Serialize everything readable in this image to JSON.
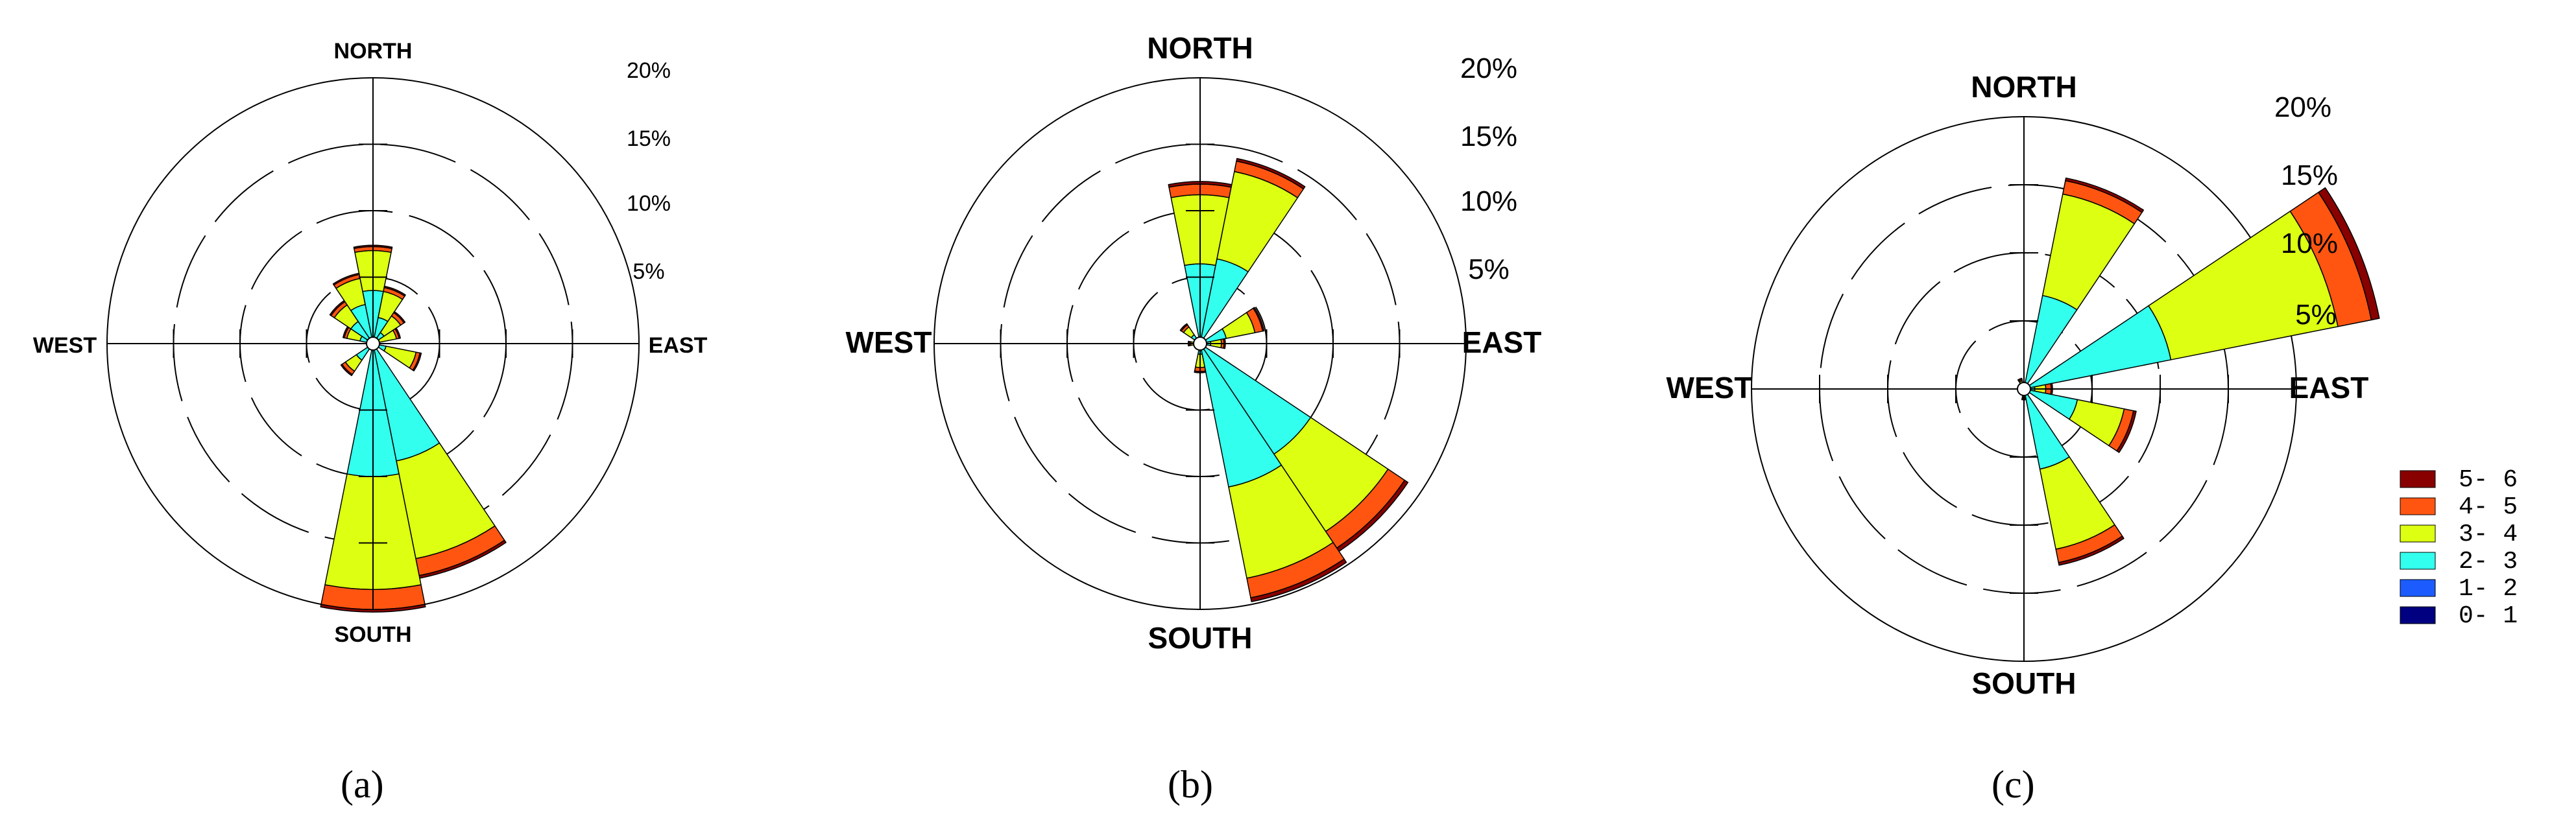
{
  "colors": {
    "bin_0_1": "#000080",
    "bin_1_2": "#1c5cff",
    "bin_2_3": "#33ffee",
    "bin_3_4": "#ddff11",
    "bin_4_5": "#ff5511",
    "bin_5_6": "#880000",
    "outline": "#000000",
    "background": "#ffffff"
  },
  "legend": {
    "entries": [
      "5- 6",
      "4- 5",
      "3- 4",
      "2- 3",
      "1- 2",
      "0- 1"
    ],
    "colors": [
      "#880000",
      "#ff5511",
      "#ddff11",
      "#33ffee",
      "#1c5cff",
      "#000080"
    ]
  },
  "chart_data": [
    {
      "type": "wind-rose",
      "panel_label": "(a)",
      "directions": {
        "north": "NORTH",
        "south": "SOUTH",
        "east": "EAST",
        "west": "WEST"
      },
      "rings": [
        "5%",
        "10%",
        "15%",
        "20%"
      ],
      "ring_values": [
        5,
        10,
        15,
        20
      ],
      "rmax": 20,
      "grid": true,
      "bins": [
        "0-1",
        "1-2",
        "2-3",
        "3-4",
        "4-5",
        "5-6"
      ],
      "sectors": [
        {
          "dir_deg": 0,
          "cumulative": [
            0,
            0,
            4,
            7,
            7.3,
            7.4
          ]
        },
        {
          "dir_deg": 22.5,
          "cumulative": [
            0,
            0,
            2,
            4,
            4.3,
            4.4
          ]
        },
        {
          "dir_deg": 45,
          "cumulative": [
            0,
            0,
            1,
            2.5,
            2.8,
            2.9
          ]
        },
        {
          "dir_deg": 67.5,
          "cumulative": [
            0,
            0,
            0.5,
            1.8,
            2,
            2.1
          ]
        },
        {
          "dir_deg": 112.5,
          "cumulative": [
            0,
            0,
            1,
            3.3,
            3.6,
            3.7
          ]
        },
        {
          "dir_deg": 157.5,
          "cumulative": [
            0,
            0,
            9,
            16.5,
            17.8,
            18
          ]
        },
        {
          "dir_deg": 180,
          "cumulative": [
            0,
            0,
            10,
            18.5,
            20,
            20.2
          ]
        },
        {
          "dir_deg": 225,
          "cumulative": [
            0,
            0,
            1.5,
            2.5,
            2.8,
            2.9
          ]
        },
        {
          "dir_deg": 292.5,
          "cumulative": [
            0,
            0,
            1,
            2,
            2.2,
            2.3
          ]
        },
        {
          "dir_deg": 315,
          "cumulative": [
            0,
            0,
            2,
            3.5,
            3.8,
            3.9
          ]
        },
        {
          "dir_deg": 337.5,
          "cumulative": [
            0,
            0,
            3,
            5,
            5.3,
            5.4
          ]
        }
      ]
    },
    {
      "type": "wind-rose",
      "panel_label": "(b)",
      "directions": {
        "north": "NORTH",
        "south": "SOUTH",
        "east": "EAST",
        "west": "WEST"
      },
      "rings": [
        "5%",
        "10%",
        "15%",
        "20%"
      ],
      "ring_values": [
        5,
        10,
        15,
        20
      ],
      "rmax": 20,
      "grid": true,
      "bins": [
        "0-1",
        "1-2",
        "2-3",
        "3-4",
        "4-5",
        "5-6"
      ],
      "sectors": [
        {
          "dir_deg": 0,
          "cumulative": [
            0,
            0,
            6,
            11.2,
            12,
            12.2
          ]
        },
        {
          "dir_deg": 22.5,
          "cumulative": [
            0,
            0,
            6.5,
            13.2,
            14,
            14.2
          ]
        },
        {
          "dir_deg": 67.5,
          "cumulative": [
            0,
            0,
            2,
            4.2,
            4.8,
            4.9
          ]
        },
        {
          "dir_deg": 90,
          "cumulative": [
            0,
            0,
            0.8,
            1.6,
            1.8,
            1.9
          ]
        },
        {
          "dir_deg": 135,
          "cumulative": [
            0,
            0,
            10,
            17,
            18.5,
            18.8
          ]
        },
        {
          "dir_deg": 157.5,
          "cumulative": [
            0,
            0,
            11,
            18,
            19.5,
            19.8
          ]
        },
        {
          "dir_deg": 180,
          "cumulative": [
            0,
            0,
            0.8,
            1.8,
            2.1,
            2.2
          ]
        },
        {
          "dir_deg": 270,
          "cumulative": [
            0,
            0,
            0.3,
            0.7,
            0.8,
            0.9
          ]
        },
        {
          "dir_deg": 315,
          "cumulative": [
            0,
            0,
            0.8,
            1.5,
            1.7,
            1.8
          ]
        }
      ]
    },
    {
      "type": "wind-rose",
      "panel_label": "(c)",
      "directions": {
        "north": "NORTH",
        "south": "SOUTH",
        "east": "EAST",
        "west": "WEST"
      },
      "rings": [
        "5%",
        "10%",
        "15%",
        "20%"
      ],
      "ring_values": [
        5,
        10,
        15,
        20
      ],
      "rmax": 20,
      "grid": true,
      "bins": [
        "0-1",
        "1-2",
        "2-3",
        "3-4",
        "4-5",
        "5-6"
      ],
      "sectors": [
        {
          "dir_deg": 22.5,
          "cumulative": [
            0,
            0,
            7,
            14.6,
            15.6,
            15.8
          ]
        },
        {
          "dir_deg": 67.5,
          "cumulative": [
            0,
            0,
            11,
            23.5,
            26,
            26.6
          ]
        },
        {
          "dir_deg": 90,
          "cumulative": [
            0,
            0,
            0.8,
            1.6,
            2,
            2.1
          ]
        },
        {
          "dir_deg": 112.5,
          "cumulative": [
            0,
            0,
            4,
            7.5,
            8.2,
            8.4
          ]
        },
        {
          "dir_deg": 157.5,
          "cumulative": [
            0,
            0,
            6,
            12,
            13,
            13.2
          ]
        },
        {
          "dir_deg": 180,
          "cumulative": [
            0,
            0,
            0.3,
            0.6,
            0.7,
            0.8
          ]
        },
        {
          "dir_deg": 337.5,
          "cumulative": [
            0,
            0,
            0.3,
            0.6,
            0.7,
            0.8
          ]
        }
      ]
    }
  ]
}
